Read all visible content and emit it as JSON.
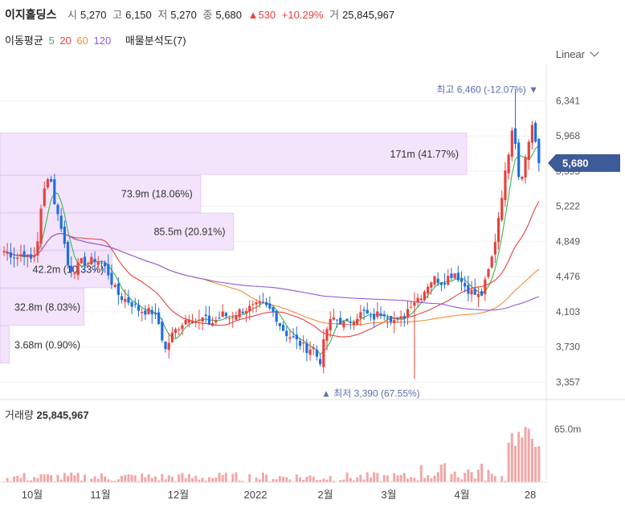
{
  "header": {
    "name": "이지홀딩스",
    "open_label": "시",
    "open": "5,270",
    "high_label": "고",
    "high": "6,150",
    "low_label": "저",
    "low": "5,270",
    "close_label": "종",
    "close": "5,680",
    "change_arrow": "▲",
    "change": "530",
    "change_pct": "+10.29%",
    "volume_label": "거",
    "volume": "25,845,967"
  },
  "indicators": {
    "ma_label": "이동평균",
    "ma5": "5",
    "ma20": "20",
    "ma60": "60",
    "ma120": "120",
    "profile_label": "매물분석도(7)"
  },
  "scale_mode": "Linear",
  "colors": {
    "up": "#e8413e",
    "down": "#1f6fe0",
    "ma5": "#3cb44b",
    "ma20": "#e8413e",
    "ma60": "#f08c3a",
    "ma120": "#8f5bd4",
    "profile": "#f3e4fb",
    "profile_border": "#d9b8ee",
    "price_tag": "#3d5a99",
    "volume": "#f2a7a7"
  },
  "chart_data": {
    "type": "candlestick",
    "y_ticks": [
      "6,341",
      "5,968",
      "5,595",
      "5,222",
      "4,849",
      "4,476",
      "4,103",
      "3,730",
      "3,357"
    ],
    "ylim": [
      3233,
      6600
    ],
    "x_tick_labels": [
      "10월",
      "11월",
      "12월",
      "2022",
      "2월",
      "3월",
      "4월",
      "28"
    ],
    "current_price": "5,680",
    "max_annotation": "최고 6,460 (-12.07%) ▼",
    "min_annotation": "▲ 최저 3,390 (67.55%)",
    "volume_profile": [
      {
        "label": "171m (41.77%)",
        "price_lo": 5550,
        "price_hi": 5999,
        "frac": 1.0
      },
      {
        "label": "73.9m (18.06%)",
        "price_lo": 5150,
        "price_hi": 5550,
        "frac": 0.43
      },
      {
        "label": "85.5m (20.91%)",
        "price_lo": 4750,
        "price_hi": 5150,
        "frac": 0.5
      },
      {
        "label": "42.2m (10.33%)",
        "price_lo": 4350,
        "price_hi": 4750,
        "frac": 0.24
      },
      {
        "label": "32.8m (8.03%)",
        "price_lo": 3950,
        "price_hi": 4350,
        "frac": 0.18
      },
      {
        "label": "3.68m (0.90%)",
        "price_lo": 3550,
        "price_hi": 3950,
        "frac": 0.02
      }
    ],
    "volume_header_label": "거래량",
    "volume_header_value": "25,845,967",
    "volume_tick": "65.0m",
    "candle_count": 160,
    "close_path": [
      4742,
      4717,
      4676,
      4737,
      4643,
      4742,
      5322,
      5608,
      5198,
      4985,
      4564,
      4550,
      4630,
      4625,
      4660,
      4630,
      4540,
      4370,
      4260,
      4230,
      4180,
      4120,
      4110,
      4100,
      3980,
      3690,
      3850,
      3940,
      4010,
      4070,
      3990,
      4040,
      3970,
      4020,
      4080,
      4040,
      4090,
      4120,
      4140,
      4160,
      4180,
      4140,
      4080,
      3940,
      3860,
      3810,
      3760,
      3710,
      3720,
      3560,
      3910,
      4040,
      4010,
      3960,
      4020,
      4070,
      4100,
      4020,
      4080,
      4100,
      4040,
      3990,
      4050,
      4180,
      4240,
      4300,
      4420,
      4460,
      4410,
      4480,
      4520,
      4420,
      4340,
      4290,
      4260,
      4490,
      4760,
      5240,
      5660,
      6150,
      5460,
      5760,
      6110,
      5680
    ]
  }
}
